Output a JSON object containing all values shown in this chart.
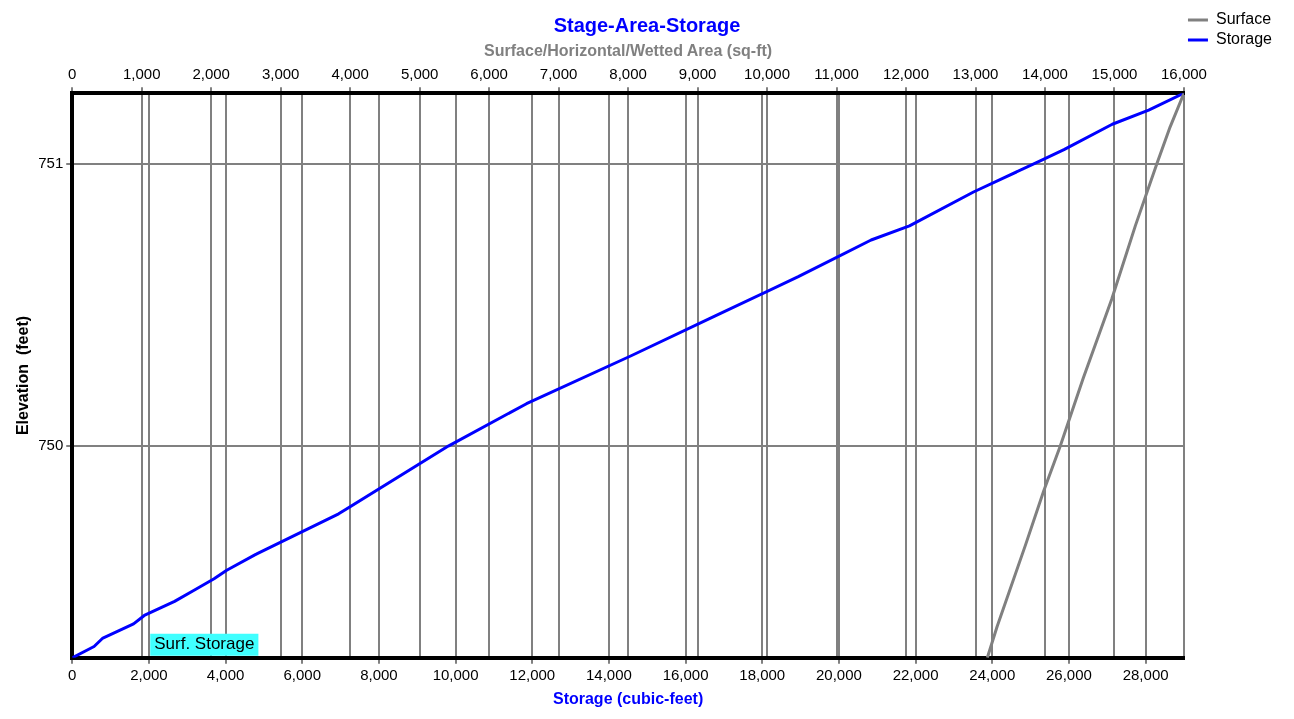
{
  "chart_data": {
    "type": "line",
    "title": "Stage-Area-Storage",
    "xlabel": "Storage (cubic-feet)",
    "x2label": "Surface/Horizontal/Wetted Area (sq-ft)",
    "ylabel": "Elevation  (feet)",
    "annotations": [
      "Surf. Storage"
    ],
    "series": [
      {
        "name": "Surface",
        "color": "#808080",
        "axis": "x2",
        "x": [
          13170,
          13310,
          13720,
          13980,
          14220,
          14550,
          14960,
          15300,
          15610,
          15800,
          16000
        ],
        "values": [
          749.25,
          749.36,
          749.65,
          749.84,
          750,
          750.24,
          750.52,
          750.78,
          751,
          751.13,
          751.25
        ]
      },
      {
        "name": "Storage",
        "color": "#0000ff",
        "x": [
          0,
          570,
          800,
          1600,
          1880,
          2670,
          3190,
          3700,
          4030,
          4840,
          6950,
          9810,
          11850,
          14580,
          16760,
          18940,
          20840,
          21840,
          23510,
          24300,
          25250,
          25870,
          27130,
          28080,
          29000
        ],
        "values": [
          749.25,
          749.29,
          749.32,
          749.37,
          749.4,
          749.45,
          749.49,
          749.53,
          749.56,
          749.62,
          749.76,
          750,
          750.15,
          750.32,
          750.46,
          750.6,
          750.73,
          750.78,
          750.9,
          750.95,
          751.01,
          751.05,
          751.14,
          751.19,
          751.25
        ]
      }
    ],
    "xlim": [
      0,
      29000
    ],
    "xticks": [
      0,
      {
        "value": 2000,
        "label": "2,000"
      },
      {
        "value": 4000,
        "label": "4,000"
      },
      {
        "value": 6000,
        "label": "6,000"
      },
      {
        "value": 8000,
        "label": "8,000"
      },
      {
        "value": 10000,
        "label": "10,000"
      },
      {
        "value": 12000,
        "label": "12,000"
      },
      {
        "value": 14000,
        "label": "14,000"
      },
      {
        "value": 16000,
        "label": "16,000"
      },
      {
        "value": 18000,
        "label": "18,000"
      },
      {
        "value": 20000,
        "label": "20,000"
      },
      {
        "value": 22000,
        "label": "22,000"
      },
      {
        "value": 24000,
        "label": "24,000"
      },
      {
        "value": 26000,
        "label": "26,000"
      },
      {
        "value": 28000,
        "label": "28,000"
      }
    ],
    "x2lim": [
      0,
      16000
    ],
    "x2ticks": [
      0,
      {
        "value": 1000,
        "label": "1,000"
      },
      {
        "value": 2000,
        "label": "2,000"
      },
      {
        "value": 3000,
        "label": "3,000"
      },
      {
        "value": 4000,
        "label": "4,000"
      },
      {
        "value": 5000,
        "label": "5,000"
      },
      {
        "value": 6000,
        "label": "6,000"
      },
      {
        "value": 7000,
        "label": "7,000"
      },
      {
        "value": 8000,
        "label": "8,000"
      },
      {
        "value": 9000,
        "label": "9,000"
      },
      {
        "value": 10000,
        "label": "10,000"
      },
      {
        "value": 11000,
        "label": "11,000"
      },
      {
        "value": 12000,
        "label": "12,000"
      },
      {
        "value": 13000,
        "label": "13,000"
      },
      {
        "value": 14000,
        "label": "14,000"
      },
      {
        "value": 15000,
        "label": "15,000"
      },
      {
        "value": 16000,
        "label": "16,000"
      }
    ],
    "ylim": [
      749.25,
      751.25
    ],
    "yticks": [
      750,
      751
    ],
    "grid": true,
    "legend": "top right",
    "marker": "none",
    "line_style": "solid"
  }
}
